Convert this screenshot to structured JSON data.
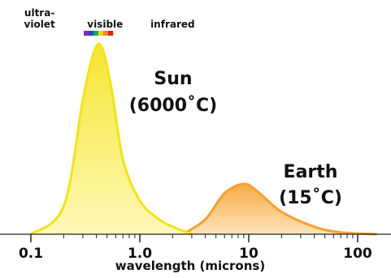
{
  "chart_data": {
    "type": "area",
    "x_scale": "log",
    "xlim": [
      0.08,
      150
    ],
    "xlabel": "wavelength (microns)",
    "ylabel": "",
    "ticks": [
      {
        "value": 0.1,
        "label": "0.1"
      },
      {
        "value": 1.0,
        "label": "1.0"
      },
      {
        "value": 10,
        "label": "10"
      },
      {
        "value": 100,
        "label": "100"
      }
    ],
    "bands": [
      {
        "line1": "ultra-",
        "line2": "violet",
        "center": 0.12
      },
      {
        "line1": "",
        "line2": "visible",
        "center": 0.48
      },
      {
        "line1": "",
        "line2": "infrared",
        "center": 2.0
      }
    ],
    "visible_spectrum_colors": [
      "#7a2ca8",
      "#2a3ed8",
      "#18a84c",
      "#f2d21b",
      "#f28a1a",
      "#e0251d"
    ],
    "series": [
      {
        "label_line1": "Sun",
        "label_line2": "(6000˚C)",
        "peak": 0.45,
        "line_color": "#f2e31a",
        "fill_color": "#fff7b0",
        "x": [
          0.1,
          0.2,
          0.3,
          0.38,
          0.45,
          0.55,
          0.7,
          1.0,
          1.5,
          2.0,
          3.0
        ],
        "y": [
          0.0,
          0.15,
          0.72,
          0.98,
          1.0,
          0.78,
          0.4,
          0.18,
          0.08,
          0.04,
          0.0
        ]
      },
      {
        "label_line1": "Earth",
        "label_line2": "(15˚C)",
        "peak": 9,
        "line_color": "#f5a030",
        "fill_color": "#fde1b4",
        "x": [
          2.5,
          4,
          6,
          9,
          12,
          20,
          40,
          70,
          150
        ],
        "y": [
          0.0,
          0.08,
          0.22,
          0.27,
          0.23,
          0.12,
          0.04,
          0.01,
          0.0
        ]
      }
    ]
  }
}
